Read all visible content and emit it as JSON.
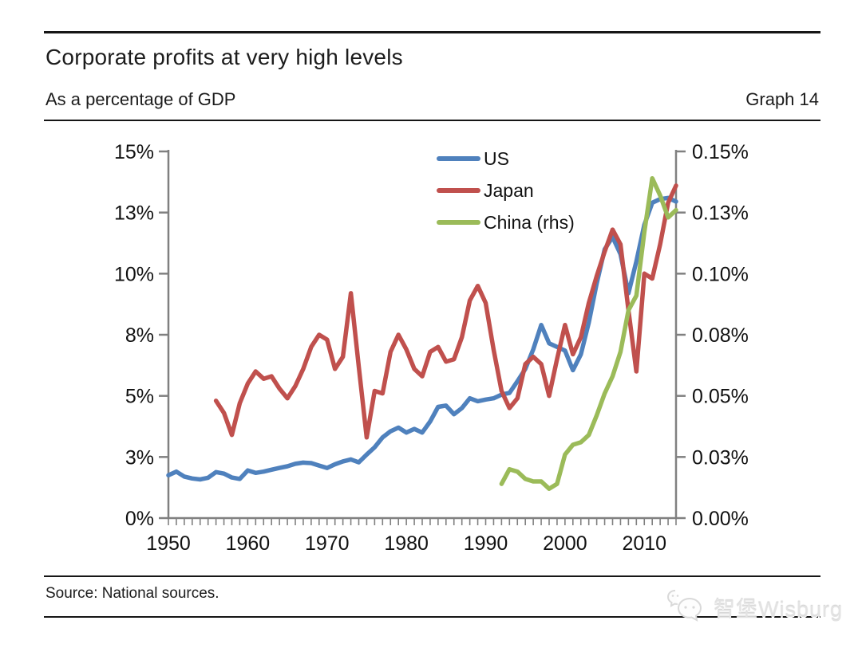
{
  "header": {
    "title": "Corporate profits at very high levels",
    "subtitle": "As a percentage of GDP",
    "graph_label": "Graph 14"
  },
  "footer": {
    "source": "Source: National sources."
  },
  "watermark": {
    "icon": "wechat-bubbles-icon",
    "text": "智堡Wisburg"
  },
  "chart_data": {
    "type": "line",
    "title": "Corporate profits at very high levels",
    "subtitle": "As a percentage of GDP",
    "grid": false,
    "legend_position": "top-center-inside",
    "axis_color": "#808080",
    "x_axis": {
      "range": [
        1950,
        2014
      ],
      "minor_tick_step_years": 1,
      "decade_labels": [
        "1950",
        "1960",
        "1970",
        "1980",
        "1990",
        "2000",
        "2010"
      ]
    },
    "left_axis": {
      "range": [
        0,
        15
      ],
      "ticks": [
        0,
        2.5,
        5,
        7.5,
        10,
        12.5,
        15
      ],
      "labels": [
        "0%",
        "3%",
        "5%",
        "8%",
        "10%",
        "13%",
        "15%"
      ]
    },
    "right_axis": {
      "range": [
        0,
        0.15
      ],
      "ticks": [
        0,
        0.025,
        0.05,
        0.075,
        0.1,
        0.125,
        0.15
      ],
      "labels": [
        "0.00%",
        "0.03%",
        "0.05%",
        "0.08%",
        "0.10%",
        "0.13%",
        "0.15%"
      ]
    },
    "series": [
      {
        "name": "US",
        "axis": "left",
        "color": "#4F81BD",
        "start_year": 1950,
        "values": [
          1.75,
          1.9,
          1.7,
          1.62,
          1.58,
          1.65,
          1.88,
          1.82,
          1.66,
          1.6,
          1.95,
          1.85,
          1.9,
          1.98,
          2.05,
          2.12,
          2.22,
          2.27,
          2.25,
          2.15,
          2.05,
          2.2,
          2.32,
          2.4,
          2.28,
          2.6,
          2.9,
          3.3,
          3.55,
          3.7,
          3.5,
          3.65,
          3.5,
          3.95,
          4.55,
          4.6,
          4.25,
          4.5,
          4.9,
          4.78,
          4.85,
          4.9,
          5.05,
          5.12,
          5.6,
          6.1,
          6.9,
          7.9,
          7.15,
          7.0,
          6.85,
          6.05,
          6.7,
          8.0,
          9.6,
          11.0,
          11.5,
          10.8,
          9.2,
          10.5,
          12.0,
          12.9,
          13.05,
          13.1,
          12.95
        ]
      },
      {
        "name": "Japan",
        "axis": "left",
        "color": "#C0504D",
        "start_year": 1956,
        "values": [
          4.8,
          4.3,
          3.4,
          4.7,
          5.5,
          6.0,
          5.7,
          5.8,
          5.3,
          4.9,
          5.4,
          6.1,
          7.0,
          7.5,
          7.3,
          6.1,
          6.6,
          9.2,
          6.2,
          3.3,
          5.2,
          5.1,
          6.8,
          7.5,
          6.9,
          6.1,
          5.8,
          6.8,
          7.0,
          6.4,
          6.5,
          7.4,
          8.9,
          9.5,
          8.8,
          6.9,
          5.2,
          4.5,
          4.9,
          6.3,
          6.6,
          6.3,
          5.0,
          6.5,
          7.9,
          6.7,
          7.4,
          8.8,
          9.9,
          10.9,
          11.8,
          11.2,
          8.5,
          6.0,
          10.0,
          9.8,
          11.2,
          12.9,
          13.6
        ]
      },
      {
        "name": "China (rhs)",
        "axis": "right",
        "color": "#9BBB59",
        "start_year": 1992,
        "values": [
          0.014,
          0.02,
          0.019,
          0.016,
          0.015,
          0.015,
          0.012,
          0.014,
          0.026,
          0.03,
          0.031,
          0.034,
          0.042,
          0.051,
          0.058,
          0.068,
          0.085,
          0.091,
          0.117,
          0.139,
          0.132,
          0.123,
          0.126
        ]
      }
    ]
  }
}
